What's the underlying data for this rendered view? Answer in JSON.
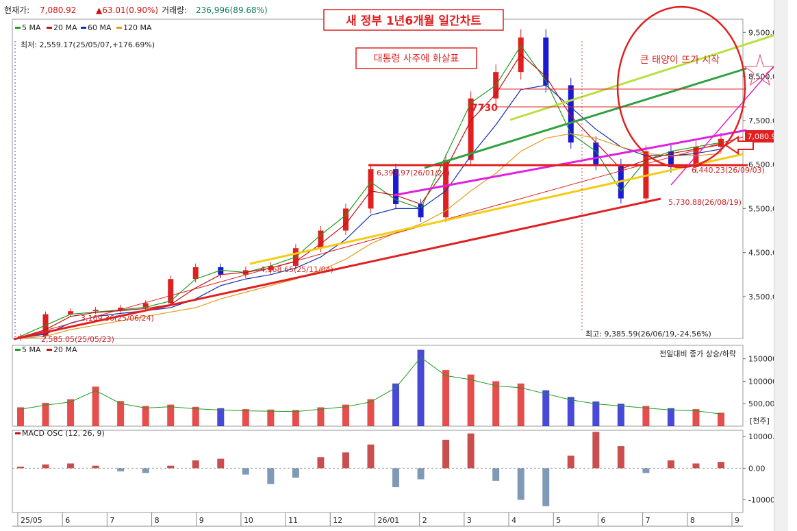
{
  "header": {
    "price_label": "현재가:",
    "price_value": "7,080.92",
    "change_value": "▲63.01(0.90%)",
    "volume_label": "거래량:",
    "volume_value": "236,996(89.68%)"
  },
  "annotations": {
    "title": "새 정부 1년6개월 일간차트",
    "arrow_note": "대통령 사주에 화살표",
    "sun_note": "큰 태양이 뜨가 시작",
    "level_7730": "7730",
    "low_note": "최저: 2,559.17(25/05/07,+176.69%)",
    "high_note": "최고: 9,385.59(26/06/19,-24.56%)",
    "label_6393": "6,393.97(26/01/21)",
    "label_6440": "6,440.23(26/09/03)",
    "label_5730": "5,730.88(26/08/19)",
    "label_3169": "3,169.36(25/06/24)",
    "label_2585": "2,585.05(25/05/23)",
    "label_4168": "4,168.65(25/11/04)",
    "current_badge": "7,080.92",
    "volume_right_note": "전일대비 종가 상승/하락",
    "volume_unit": "[천주]"
  },
  "legends": {
    "price": [
      "5 MA",
      "20 MA",
      "60 MA",
      "120 MA"
    ],
    "volume": [
      "5 MA",
      "20 MA"
    ],
    "macd": "MACD OSC (12, 26, 9)"
  },
  "colors": {
    "up": "#e02020",
    "down": "#1a1ad0",
    "ma5": "#1f9a1f",
    "ma20": "#c01010",
    "ma60": "#1030b0",
    "ma120": "#e39a1b",
    "macd_up": "#c03030",
    "macd_down": "#6888aa"
  },
  "chart_data": [
    {
      "type": "line",
      "title": "새 정부 1년6개월 일간차트",
      "x_ticks": [
        "25/05",
        "6",
        "7",
        "8",
        "9",
        "10",
        "11",
        "12",
        "26/01",
        "2",
        "3",
        "4",
        "5",
        "6",
        "7",
        "8",
        "9"
      ],
      "y_ticks": [
        3500,
        4500,
        5500,
        6500,
        7500,
        8500,
        9500
      ],
      "y_tick_labels": [
        "3,500.00",
        "4,500.00",
        "5,500.00",
        "6,500.00",
        "7,500.00",
        "8,500.00",
        "9,500.00"
      ],
      "ylim": [
        2550,
        9800
      ],
      "series": [
        {
          "name": "5 MA",
          "values": [
            2600,
            2850,
            3100,
            3150,
            3200,
            3260,
            3400,
            3900,
            4100,
            4050,
            4200,
            4400,
            4900,
            5350,
            6100,
            5700,
            5500,
            6700,
            7900,
            8300,
            9200,
            8400,
            7200,
            6800,
            5900,
            6600,
            6800,
            6900,
            7000
          ]
        },
        {
          "name": "20 MA",
          "values": [
            2580,
            2750,
            3050,
            3140,
            3180,
            3230,
            3320,
            3700,
            4000,
            4050,
            4150,
            4300,
            4700,
            5150,
            5900,
            5800,
            5600,
            6400,
            7500,
            8100,
            9000,
            8500,
            7600,
            7000,
            6400,
            6600,
            6750,
            6850,
            6950
          ]
        },
        {
          "name": "60 MA",
          "values": [
            2560,
            2650,
            2900,
            3050,
            3120,
            3180,
            3250,
            3450,
            3750,
            3900,
            4000,
            4150,
            4400,
            4800,
            5350,
            5500,
            5500,
            5900,
            6700,
            7400,
            8200,
            8300,
            7800,
            7300,
            6900,
            6700,
            6700,
            6750,
            6850
          ]
        },
        {
          "name": "120 MA",
          "values": [
            2550,
            2600,
            2750,
            2850,
            2950,
            3050,
            3150,
            3250,
            3450,
            3600,
            3750,
            3900,
            4100,
            4350,
            4700,
            4950,
            5150,
            5450,
            5900,
            6300,
            6800,
            7100,
            7200,
            7100,
            6900,
            6750,
            6700,
            6700,
            6750
          ]
        }
      ],
      "close": [
        2600,
        3100,
        3169,
        3200,
        3250,
        3350,
        3900,
        4168,
        4000,
        4100,
        4200,
        4600,
        5000,
        5500,
        6393,
        5600,
        5300,
        6600,
        8000,
        8600,
        9385,
        8300,
        7000,
        6500,
        5730,
        6800,
        6440,
        6900,
        7080
      ],
      "trendlines": [
        "7730"
      ]
    },
    {
      "type": "bar",
      "legend": [
        "5 MA",
        "20 MA"
      ],
      "y_ticks": [
        500000,
        1000000,
        1500000
      ],
      "y_tick_labels": [
        "500,000",
        "1000000",
        "1500000"
      ],
      "ylim": [
        0,
        1800000
      ],
      "values": [
        420000,
        520000,
        600000,
        880000,
        560000,
        450000,
        480000,
        430000,
        400000,
        380000,
        370000,
        360000,
        420000,
        480000,
        600000,
        950000,
        1700000,
        1250000,
        1150000,
        1000000,
        950000,
        800000,
        650000,
        550000,
        500000,
        450000,
        400000,
        380000,
        300000
      ]
    },
    {
      "type": "bar",
      "title": "MACD OSC (12, 26, 9)",
      "y_ticks": [
        -10000,
        0,
        10000
      ],
      "y_tick_labels": [
        "-10000.00",
        "0.00",
        "10000.00"
      ],
      "ylim": [
        -14000,
        12000
      ],
      "values": [
        500,
        1200,
        1500,
        800,
        -1000,
        -1500,
        800,
        2500,
        3000,
        -2000,
        -5000,
        -3000,
        3500,
        5000,
        7500,
        -6000,
        -3500,
        9000,
        11000,
        -4000,
        -10000,
        -12000,
        4000,
        11500,
        7000,
        -1500,
        2500,
        1500,
        2000
      ]
    }
  ]
}
